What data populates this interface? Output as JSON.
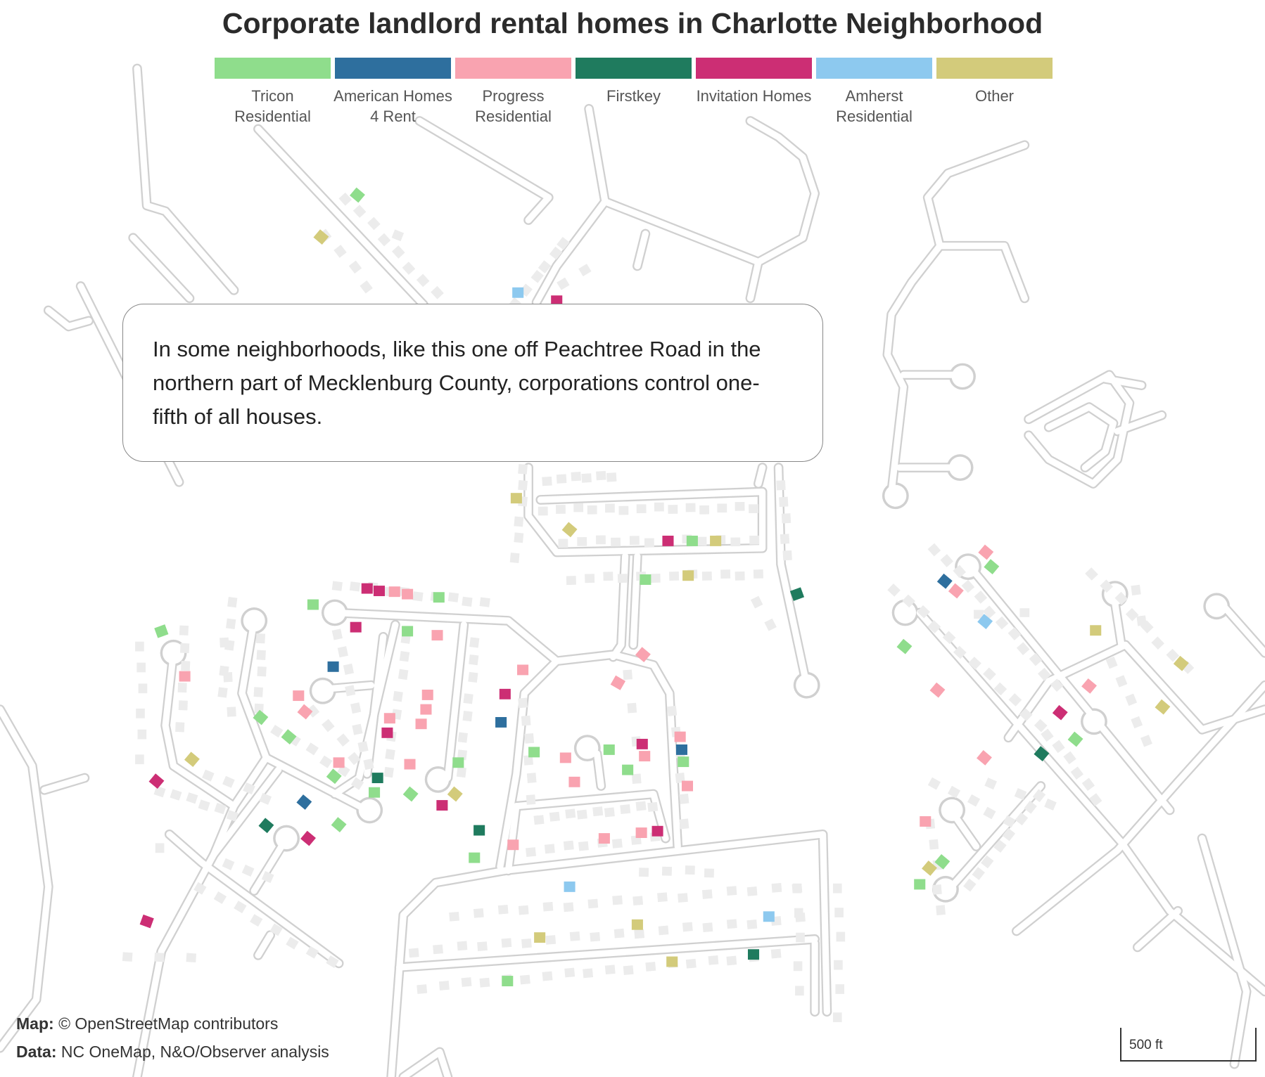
{
  "title": "Corporate landlord rental homes in Charlotte Neighborhood",
  "legend": [
    {
      "label": "Tricon Residential",
      "color": "#8fdd8c"
    },
    {
      "label": "American Homes 4 Rent",
      "color": "#2e6f9e"
    },
    {
      "label": "Progress Residential",
      "color": "#f9a3b0"
    },
    {
      "label": "Firstkey",
      "color": "#1f7b5e"
    },
    {
      "label": "Invitation Homes",
      "color": "#cc2e74"
    },
    {
      "label": "Amherst Residential",
      "color": "#8dc9ef"
    },
    {
      "label": "Other",
      "color": "#d3cb7b"
    }
  ],
  "callout": "In some neighborhoods, like this one off Peachtree Road in the northern part of Mecklenburg County, corporations control one-fifth of all houses.",
  "credits": {
    "map_label": "Map:",
    "map_text": "© OpenStreetMap contributors",
    "data_label": "Data:",
    "data_text": "NC OneMap, N&O/Observer analysis"
  },
  "scale": "500 ft",
  "colors": {
    "road": "#e4e4e4",
    "road_casing": "#d0d0d0",
    "house": "#ececec"
  }
}
